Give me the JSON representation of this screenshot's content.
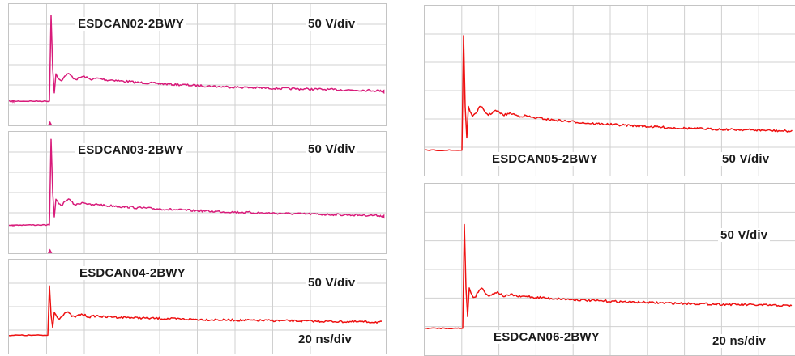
{
  "colors": {
    "magenta": "#d81b7a",
    "red": "#ee1111",
    "grid": "#d0d0d0",
    "frame": "#c4c4c4"
  },
  "panels": [
    {
      "id": "p1",
      "name": "ESDCAN02-2BWY",
      "scale": "50 V/div",
      "time": "",
      "color": "#d81b7a",
      "level_marker_left": "⇥",
      "level_marker_right": "◀",
      "trigger_marker": "▲"
    },
    {
      "id": "p2",
      "name": "ESDCAN03-2BWY",
      "scale": "50 V/div",
      "time": "",
      "color": "#d81b7a",
      "level_marker_left": "⇥",
      "level_marker_right": "◀",
      "trigger_marker": "▲"
    },
    {
      "id": "p3",
      "name": "ESDCAN04-2BWY",
      "scale": "50 V/div",
      "time": "20 ns/div",
      "color": "#ee1111"
    },
    {
      "id": "p4",
      "name": "ESDCAN05-2BWY",
      "scale": "50 V/div",
      "time": "",
      "color": "#ee1111"
    },
    {
      "id": "p5",
      "name": "ESDCAN06-2BWY",
      "scale": "50 V/div",
      "time": "20 ns/div",
      "color": "#ee1111"
    }
  ],
  "chart_data": [
    {
      "type": "line",
      "title": "ESDCAN02-2BWY",
      "y_scale": "50 V/div",
      "grid": true,
      "x_divisions": 10,
      "y_divisions": 6,
      "series": [
        {
          "values": [
            -0.28,
            5.6,
            1.45,
            1.25,
            1.0,
            0.85,
            0.72,
            0.63,
            0.56,
            0.5,
            0.44
          ]
        }
      ]
    },
    {
      "type": "line",
      "title": "ESDCAN03-2BWY",
      "y_scale": "50 V/div",
      "grid": true,
      "x_divisions": 10,
      "y_divisions": 6,
      "series": [
        {
          "values": [
            -0.28,
            5.6,
            1.35,
            1.1,
            0.9,
            0.75,
            0.64,
            0.55,
            0.48,
            0.42,
            0.37
          ]
        }
      ]
    },
    {
      "type": "line",
      "title": "ESDCAN04-2BWY",
      "y_scale": "50 V/div",
      "x_scale": "20 ns/div",
      "grid": true,
      "x_divisions": 10,
      "y_divisions": 4,
      "series": [
        {
          "values": [
            -0.3,
            3.1,
            1.15,
            1.0,
            0.9,
            0.82,
            0.76,
            0.72,
            0.68,
            0.64,
            0.6
          ]
        }
      ]
    },
    {
      "type": "line",
      "title": "ESDCAN05-2BWY",
      "y_scale": "50 V/div",
      "grid": true,
      "x_divisions": 10,
      "y_divisions": 6,
      "series": [
        {
          "values": [
            -0.25,
            5.0,
            1.6,
            1.4,
            1.15,
            0.98,
            0.88,
            0.78,
            0.72,
            0.68,
            0.62
          ]
        }
      ]
    },
    {
      "type": "line",
      "title": "ESDCAN06-2BWY",
      "y_scale": "50 V/div",
      "x_scale": "20 ns/div",
      "grid": true,
      "x_divisions": 10,
      "y_divisions": 6,
      "series": [
        {
          "values": [
            -0.25,
            4.5,
            1.45,
            1.25,
            1.12,
            1.02,
            0.95,
            0.9,
            0.86,
            0.82,
            0.78
          ]
        }
      ]
    }
  ]
}
